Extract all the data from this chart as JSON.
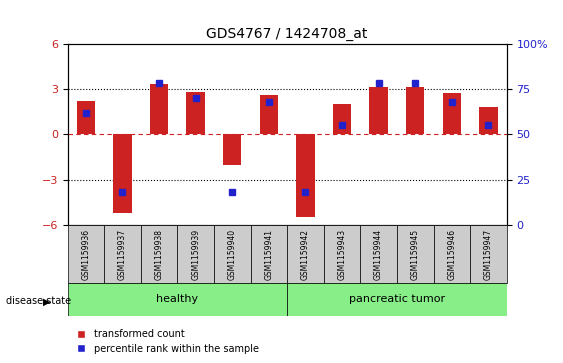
{
  "title": "GDS4767 / 1424708_at",
  "samples": [
    "GSM1159936",
    "GSM1159937",
    "GSM1159938",
    "GSM1159939",
    "GSM1159940",
    "GSM1159941",
    "GSM1159942",
    "GSM1159943",
    "GSM1159944",
    "GSM1159945",
    "GSM1159946",
    "GSM1159947"
  ],
  "transformed_counts": [
    2.2,
    -5.2,
    3.3,
    2.8,
    -2.0,
    2.6,
    -5.5,
    2.0,
    3.1,
    3.1,
    2.7,
    1.8
  ],
  "percentile_ranks": [
    62,
    18,
    78,
    70,
    18,
    68,
    18,
    55,
    78,
    78,
    68,
    55
  ],
  "ylim": [
    -6,
    6
  ],
  "yticks": [
    -6,
    -3,
    0,
    3,
    6
  ],
  "right_yticks": [
    0,
    25,
    50,
    75,
    100
  ],
  "right_ylim": [
    0,
    100
  ],
  "bar_color": "#cc2222",
  "dot_color": "#2222cc",
  "zero_line_color": "#cc2222",
  "grid_color": "#000000",
  "healthy_group": [
    0,
    1,
    2,
    3,
    4,
    5
  ],
  "tumor_group": [
    6,
    7,
    8,
    9,
    10,
    11
  ],
  "healthy_label": "healthy",
  "tumor_label": "pancreatic tumor",
  "disease_state_label": "disease state",
  "legend_bar_label": "transformed count",
  "legend_dot_label": "percentile rank within the sample",
  "group_box_color": "#88ee88",
  "xlabel_area_color": "#cccccc",
  "figsize": [
    5.63,
    3.63
  ],
  "dpi": 100
}
